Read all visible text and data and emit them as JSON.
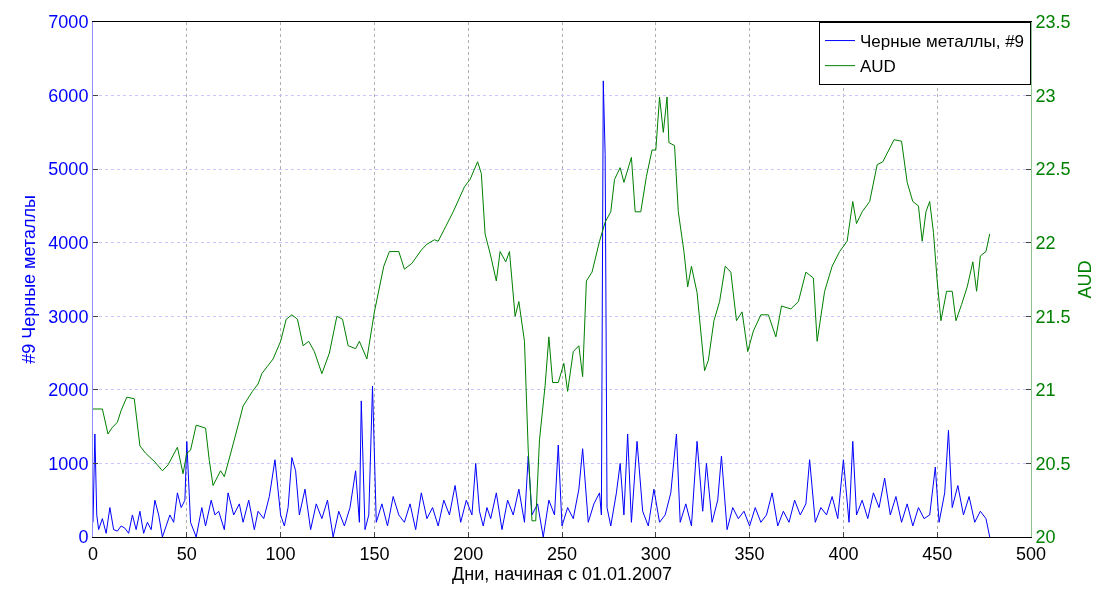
{
  "chart_data": {
    "type": "line",
    "xlabel": "Дни, начиная с 01.01.2007",
    "ylabel": "#9 Черные металлы",
    "y2label": "AUD",
    "xlim": [
      0,
      500
    ],
    "xticks": [
      0,
      50,
      100,
      150,
      200,
      250,
      300,
      350,
      400,
      450,
      500
    ],
    "ylim": [
      0,
      7000
    ],
    "yticks": [
      0,
      1000,
      2000,
      3000,
      4000,
      5000,
      6000,
      7000
    ],
    "y2lim": [
      20,
      23.5
    ],
    "y2ticks": [
      20,
      20.5,
      21,
      21.5,
      22,
      22.5,
      23,
      23.5
    ],
    "grid": true,
    "legend": "top right",
    "line_style": "solid",
    "marker": "none",
    "series": [
      {
        "name": "Черные металлы, #9",
        "color": "#0000ff",
        "x": [
          0,
          1,
          2,
          3,
          5,
          7,
          9,
          11,
          13,
          15,
          17,
          19,
          21,
          23,
          25,
          27,
          29,
          31,
          33,
          35,
          37,
          39,
          41,
          43,
          45,
          47,
          49,
          50,
          52,
          55,
          58,
          60,
          63,
          65,
          67,
          70,
          72,
          75,
          78,
          80,
          83,
          86,
          88,
          91,
          94,
          97,
          100,
          102,
          104,
          106,
          108,
          110,
          113,
          116,
          119,
          122,
          125,
          128,
          131,
          134,
          137,
          140,
          142,
          143,
          145,
          147,
          149,
          151,
          154,
          157,
          160,
          163,
          166,
          169,
          172,
          175,
          178,
          181,
          184,
          187,
          190,
          193,
          196,
          199,
          202,
          204,
          206,
          208,
          210,
          212,
          215,
          218,
          221,
          224,
          227,
          230,
          232,
          234,
          237,
          240,
          243,
          246,
          248,
          250,
          253,
          256,
          259,
          261,
          264,
          267,
          270,
          271,
          272,
          273,
          274,
          276,
          279,
          281,
          283,
          285,
          287,
          290,
          293,
          296,
          299,
          302,
          305,
          308,
          311,
          313,
          316,
          319,
          322,
          325,
          327,
          330,
          333,
          335,
          338,
          341,
          344,
          347,
          350,
          353,
          356,
          359,
          362,
          365,
          368,
          371,
          374,
          377,
          380,
          382,
          385,
          388,
          391,
          394,
          397,
          400,
          403,
          405,
          407,
          410,
          413,
          416,
          419,
          422,
          425,
          428,
          431,
          434,
          437,
          440,
          443,
          446,
          449,
          451,
          454,
          456,
          458,
          461,
          464,
          467,
          470,
          473,
          476,
          478
        ],
        "values": [
          200,
          1400,
          300,
          100,
          250,
          50,
          400,
          100,
          80,
          150,
          120,
          50,
          300,
          100,
          350,
          50,
          200,
          100,
          500,
          300,
          0,
          150,
          300,
          200,
          600,
          400,
          500,
          1300,
          200,
          0,
          400,
          150,
          500,
          300,
          350,
          100,
          600,
          300,
          450,
          200,
          500,
          100,
          350,
          250,
          550,
          1050,
          300,
          150,
          400,
          1080,
          900,
          300,
          650,
          100,
          450,
          250,
          500,
          0,
          350,
          150,
          400,
          900,
          200,
          1850,
          100,
          300,
          2050,
          200,
          450,
          150,
          550,
          300,
          200,
          450,
          100,
          600,
          250,
          400,
          150,
          500,
          300,
          700,
          200,
          500,
          300,
          1000,
          350,
          150,
          400,
          250,
          600,
          100,
          500,
          300,
          650,
          200,
          1100,
          300,
          450,
          0,
          500,
          300,
          1250,
          150,
          400,
          250,
          650,
          1200,
          200,
          450,
          600,
          300,
          6200,
          5200,
          400,
          150,
          600,
          1000,
          300,
          1400,
          200,
          1300,
          350,
          150,
          650,
          200,
          300,
          600,
          1400,
          200,
          450,
          150,
          1300,
          350,
          1000,
          200,
          500,
          1100,
          100,
          400,
          250,
          350,
          150,
          400,
          200,
          300,
          600,
          150,
          350,
          200,
          500,
          300,
          450,
          1050,
          200,
          400,
          300,
          550,
          250,
          1050,
          200,
          1300,
          300,
          500,
          250,
          600,
          400,
          800,
          300,
          550,
          200,
          450,
          150,
          400,
          250,
          300,
          950,
          200,
          600,
          1450,
          400,
          700,
          300,
          550,
          200,
          350,
          250,
          0
        ]
      },
      {
        "name": "AUD",
        "color": "#008000",
        "axis": "y2",
        "x": [
          0,
          5,
          8,
          10,
          13,
          15,
          18,
          22,
          25,
          28,
          33,
          37,
          40,
          45,
          48,
          50,
          52,
          55,
          60,
          62,
          64,
          68,
          70,
          73,
          78,
          80,
          85,
          88,
          90,
          93,
          96,
          100,
          103,
          106,
          109,
          112,
          115,
          118,
          122,
          126,
          130,
          133,
          136,
          140,
          142,
          146,
          150,
          155,
          158,
          163,
          166,
          170,
          175,
          178,
          182,
          184,
          188,
          192,
          198,
          201,
          205,
          207,
          209,
          212,
          215,
          217,
          220,
          222,
          225,
          227,
          230,
          232,
          234,
          236,
          238,
          241,
          243,
          245,
          248,
          251,
          253,
          256,
          259,
          261,
          263,
          266,
          270,
          273,
          276,
          278,
          281,
          283,
          287,
          289,
          292,
          295,
          298,
          300,
          302,
          304,
          306,
          307,
          310,
          312,
          315,
          317,
          319,
          322,
          326,
          328,
          331,
          334,
          337,
          340,
          343,
          346,
          349,
          352,
          356,
          360,
          364,
          367,
          372,
          376,
          380,
          384,
          386,
          390,
          394,
          398,
          402,
          405,
          407,
          410,
          414,
          418,
          421,
          427,
          431,
          434,
          437,
          440,
          442,
          444,
          446,
          448,
          450,
          452,
          455,
          458,
          460,
          463,
          466,
          469,
          471,
          473,
          476,
          478
        ],
        "values": [
          20.87,
          20.87,
          20.7,
          20.74,
          20.78,
          20.86,
          20.95,
          20.94,
          20.62,
          20.57,
          20.51,
          20.45,
          20.49,
          20.61,
          20.43,
          20.57,
          20.59,
          20.76,
          20.74,
          20.52,
          20.35,
          20.45,
          20.41,
          20.55,
          20.79,
          20.89,
          20.99,
          21.04,
          21.11,
          21.16,
          21.21,
          21.33,
          21.48,
          21.51,
          21.48,
          21.3,
          21.33,
          21.26,
          21.11,
          21.25,
          21.5,
          21.48,
          21.3,
          21.28,
          21.33,
          21.21,
          21.53,
          21.84,
          21.94,
          21.94,
          21.82,
          21.86,
          21.95,
          21.99,
          22.02,
          22.01,
          22.11,
          22.21,
          22.38,
          22.43,
          22.55,
          22.47,
          22.06,
          21.91,
          21.74,
          21.94,
          21.87,
          21.94,
          21.5,
          21.6,
          21.33,
          20.59,
          20.11,
          20.11,
          20.66,
          21.03,
          21.36,
          21.05,
          21.05,
          21.18,
          20.99,
          21.26,
          21.3,
          21.09,
          21.74,
          21.8,
          22.01,
          22.14,
          22.21,
          22.43,
          22.51,
          22.41,
          22.58,
          22.21,
          22.21,
          22.45,
          22.63,
          22.63,
          22.99,
          22.75,
          22.99,
          22.68,
          22.66,
          22.21,
          21.94,
          21.7,
          21.84,
          21.66,
          21.13,
          21.2,
          21.47,
          21.6,
          21.84,
          21.8,
          21.47,
          21.53,
          21.26,
          21.4,
          21.51,
          21.51,
          21.36,
          21.57,
          21.55,
          21.6,
          21.8,
          21.76,
          21.33,
          21.67,
          21.84,
          21.94,
          22.01,
          22.28,
          22.13,
          22.21,
          22.28,
          22.53,
          22.55,
          22.7,
          22.69,
          22.41,
          22.28,
          22.25,
          22.01,
          22.21,
          22.28,
          22.07,
          21.74,
          21.47,
          21.67,
          21.67,
          21.47,
          21.58,
          21.7,
          21.87,
          21.67,
          21.91,
          21.94,
          22.06
        ]
      }
    ]
  }
}
